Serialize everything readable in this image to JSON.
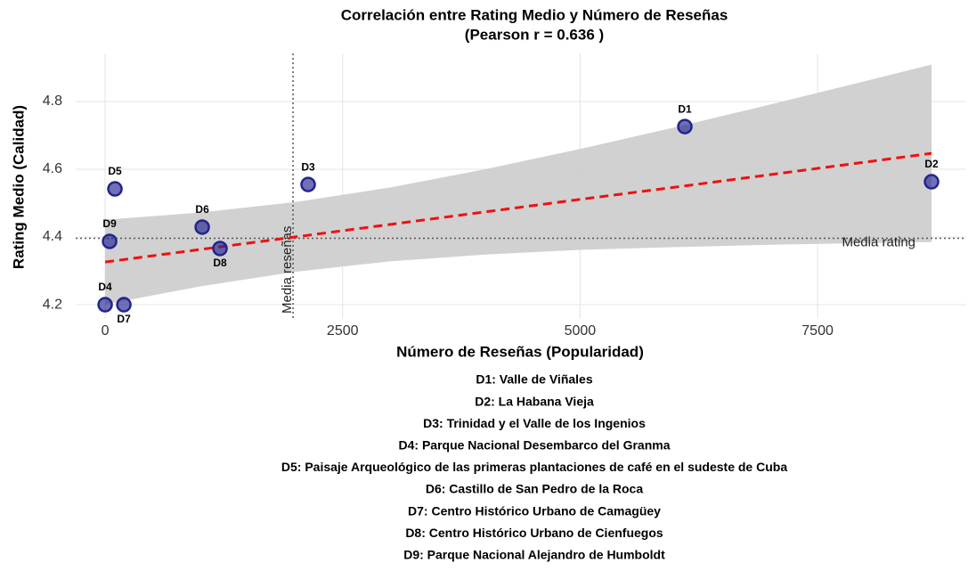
{
  "chart_data": {
    "type": "scatter",
    "title": [
      "Correlación entre Rating Medio y Número de Reseñas",
      "(Pearson r = 0.636 )"
    ],
    "x_label": "Número de Reseñas (Popularidad)",
    "y_label": "Rating Medio (Calidad)",
    "labels": [
      "D1",
      "D2",
      "D3",
      "D4",
      "D5",
      "D6",
      "D7",
      "D8",
      "D9"
    ],
    "x": [
      6103,
      8700,
      2137,
      0,
      103,
      1022,
      197,
      1209,
      47
    ],
    "values": [
      4.726,
      4.563,
      4.555,
      4.2,
      4.542,
      4.429,
      4.2,
      4.366,
      4.387
    ],
    "color": "#23238f",
    "trend": {
      "color": "#ee1111",
      "x": [
        0,
        1000,
        2000,
        3000,
        4000,
        5000,
        6000,
        7000,
        8000,
        8700
      ],
      "y": [
        4.326,
        4.363,
        4.4,
        4.437,
        4.474,
        4.511,
        4.547,
        4.584,
        4.621,
        4.647
      ],
      "lower": [
        4.201,
        4.254,
        4.297,
        4.328,
        4.348,
        4.362,
        4.37,
        4.377,
        4.382,
        4.385
      ],
      "upper": [
        4.451,
        4.472,
        4.503,
        4.546,
        4.6,
        4.66,
        4.724,
        4.791,
        4.86,
        4.909
      ]
    },
    "mean_x": {
      "value": 1978,
      "label": "Media reseñas"
    },
    "mean_y": {
      "value": 4.396,
      "label": "Media rating"
    },
    "xlim": [
      -310,
      9065
    ],
    "ylim": [
      4.158,
      4.942
    ],
    "xticks": [
      0,
      2500,
      5000,
      7500
    ],
    "yticks": [
      4.2,
      4.4,
      4.6,
      4.8
    ],
    "grid": true,
    "notes": [
      "D1: Valle de Viñales",
      "D2: La Habana Vieja",
      "D3: Trinidad y el Valle de los Ingenios",
      "D4: Parque Nacional Desembarco del Granma",
      "D5: Paisaje Arqueológico de las primeras plantaciones de café en el sudeste de Cuba",
      "D6: Castillo de San Pedro de la Roca",
      "D7: Centro Histórico Urbano de Camagüey",
      "D8: Centro Histórico Urbano de Cienfuegos",
      "D9: Parque Nacional Alejandro de Humboldt"
    ]
  }
}
